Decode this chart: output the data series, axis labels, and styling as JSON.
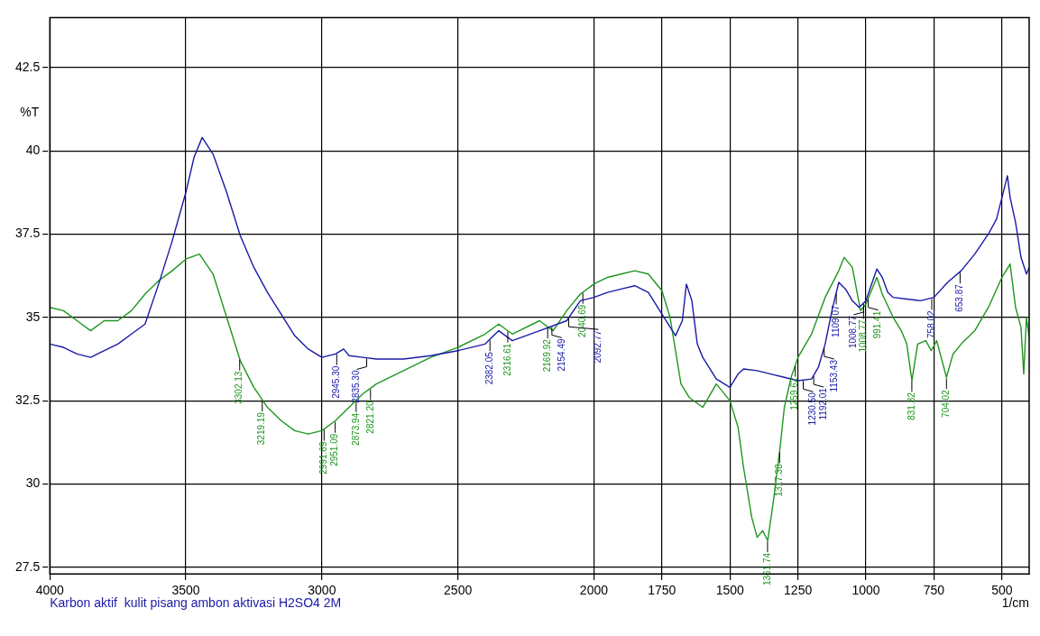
{
  "chart_data": {
    "type": "line",
    "xlabel": "1/cm",
    "ylabel": "%T",
    "xlim": [
      4000,
      400
    ],
    "xticks": [
      4000,
      3500,
      3000,
      2500,
      2000,
      1750,
      1500,
      1250,
      1000,
      750,
      500
    ],
    "ylim": [
      27.3,
      44
    ],
    "yticks": [
      27.5,
      30,
      32.5,
      35,
      37.5,
      40,
      42.5
    ],
    "grid": true,
    "legend": false,
    "marker": "none",
    "line_style": "solid",
    "series": [
      {
        "color": "#1a1aa8",
        "x": [
          4000,
          3950,
          3900,
          3850,
          3800,
          3750,
          3700,
          3650,
          3600,
          3550,
          3500,
          3470,
          3440,
          3400,
          3350,
          3300,
          3250,
          3200,
          3150,
          3100,
          3050,
          3000,
          2950,
          2920,
          2900,
          2850,
          2800,
          2700,
          2600,
          2500,
          2400,
          2350,
          2300,
          2200,
          2100,
          2050,
          2000,
          1950,
          1900,
          1850,
          1800,
          1750,
          1700,
          1675,
          1660,
          1640,
          1620,
          1600,
          1550,
          1500,
          1470,
          1450,
          1400,
          1350,
          1300,
          1250,
          1200,
          1175,
          1150,
          1125,
          1100,
          1075,
          1050,
          1025,
          1000,
          975,
          960,
          940,
          920,
          900,
          850,
          800,
          750,
          700,
          650,
          600,
          550,
          520,
          480,
          470,
          450,
          430,
          410,
          400
        ],
        "values": [
          34.2,
          34.1,
          33.9,
          33.8,
          34.0,
          34.2,
          34.5,
          34.8,
          36.0,
          37.3,
          38.75,
          39.8,
          40.4,
          39.9,
          38.75,
          37.45,
          36.5,
          35.75,
          35.1,
          34.45,
          34.05,
          33.8,
          33.9,
          34.05,
          33.85,
          33.8,
          33.75,
          33.75,
          33.85,
          34.0,
          34.2,
          34.6,
          34.3,
          34.6,
          34.9,
          35.5,
          35.6,
          35.75,
          35.85,
          35.95,
          35.75,
          35.1,
          34.45,
          34.9,
          36.0,
          35.5,
          34.2,
          33.8,
          33.15,
          32.9,
          33.3,
          33.45,
          33.4,
          33.3,
          33.2,
          33.1,
          33.15,
          33.5,
          34.2,
          35.2,
          36.05,
          35.85,
          35.5,
          35.3,
          35.5,
          36.1,
          36.45,
          36.2,
          35.75,
          35.6,
          35.55,
          35.5,
          35.6,
          36.05,
          36.4,
          36.9,
          37.5,
          37.95,
          39.25,
          38.6,
          37.85,
          36.8,
          36.3,
          36.5
        ]
      },
      {
        "color": "#1e961e",
        "x": [
          4000,
          3950,
          3900,
          3850,
          3800,
          3750,
          3700,
          3650,
          3600,
          3550,
          3500,
          3450,
          3400,
          3350,
          3300,
          3250,
          3200,
          3150,
          3100,
          3050,
          3000,
          2950,
          2900,
          2850,
          2800,
          2700,
          2600,
          2500,
          2400,
          2350,
          2300,
          2200,
          2150,
          2100,
          2050,
          2000,
          1950,
          1900,
          1850,
          1800,
          1750,
          1720,
          1700,
          1680,
          1650,
          1600,
          1550,
          1500,
          1470,
          1450,
          1420,
          1400,
          1380,
          1361,
          1340,
          1317,
          1300,
          1275,
          1250,
          1200,
          1150,
          1100,
          1080,
          1050,
          1020,
          1000,
          960,
          940,
          900,
          870,
          850,
          831,
          810,
          780,
          760,
          740,
          704,
          680,
          650,
          600,
          550,
          500,
          470,
          450,
          430,
          420,
          410,
          400
        ],
        "values": [
          35.3,
          35.2,
          34.9,
          34.6,
          34.9,
          34.9,
          35.2,
          35.7,
          36.1,
          36.4,
          36.75,
          36.9,
          36.3,
          35.0,
          33.7,
          32.9,
          32.3,
          31.9,
          31.6,
          31.5,
          31.6,
          31.9,
          32.3,
          32.7,
          33.0,
          33.4,
          33.8,
          34.1,
          34.5,
          34.8,
          34.5,
          34.9,
          34.6,
          35.2,
          35.7,
          36.0,
          36.2,
          36.3,
          36.4,
          36.3,
          35.8,
          35.0,
          34.0,
          33.0,
          32.6,
          32.3,
          33.0,
          32.5,
          31.7,
          30.5,
          29.0,
          28.4,
          28.6,
          28.3,
          29.5,
          31.0,
          32.3,
          33.2,
          33.8,
          34.5,
          35.6,
          36.4,
          36.8,
          36.5,
          35.2,
          35.4,
          36.2,
          35.7,
          35.0,
          34.6,
          34.2,
          33.1,
          34.2,
          34.3,
          34.0,
          34.3,
          33.2,
          33.9,
          34.2,
          34.6,
          35.3,
          36.2,
          36.6,
          35.3,
          34.7,
          33.3,
          35.0,
          34.4
        ]
      }
    ],
    "annotations": [
      "Karbon aktif  kulit pisang ambon aktivasi H2SO4 2M",
      {
        "text": "3302.13",
        "x": 3302.13,
        "y": 33.76
      },
      {
        "text": "3219.19",
        "x": 3219.19,
        "y": 32.53
      },
      {
        "text": "2991.69",
        "x": 2991.69,
        "y": 31.65
      },
      {
        "text": "2951.09",
        "x": 2951.09,
        "y": 31.89
      },
      {
        "text": "2873.94",
        "x": 2873.94,
        "y": 32.51
      },
      {
        "text": "2821.20",
        "x": 2821.2,
        "y": 32.87
      },
      {
        "text": "2316.61",
        "x": 2316.61,
        "y": 34.6
      },
      {
        "text": "2169.92",
        "x": 2169.92,
        "y": 34.72
      },
      {
        "text": "2040.69",
        "x": 2040.69,
        "y": 35.76
      },
      {
        "text": "1361.74",
        "x": 1361.74,
        "y": 28.31
      },
      {
        "text": "1317.38",
        "x": 1317.38,
        "y": 30.98
      },
      {
        "text": "1259.62",
        "x": 1259.62,
        "y": 33.57
      },
      {
        "text": "1008.77",
        "x": 1008.77,
        "y": 35.31
      },
      {
        "text": "991.41",
        "x": 991.41,
        "y": 35.57
      },
      {
        "text": "831.32",
        "x": 831.32,
        "y": 33.12
      },
      {
        "text": "704.02",
        "x": 704.02,
        "y": 33.2
      },
      {
        "text": "2945.30",
        "x": 2945.3,
        "y": 33.92
      },
      {
        "text": "2835.30",
        "x": 2835.3,
        "y": 33.79
      },
      {
        "text": "2382.05",
        "x": 2382.05,
        "y": 34.34
      },
      {
        "text": "2154.49",
        "x": 2154.49,
        "y": 34.74
      },
      {
        "text": "2092.77",
        "x": 2092.77,
        "y": 34.99
      },
      {
        "text": "1230.50",
        "x": 1230.5,
        "y": 33.12
      },
      {
        "text": "1192.01",
        "x": 1192.01,
        "y": 33.26
      },
      {
        "text": "1153.43",
        "x": 1153.43,
        "y": 34.1
      },
      {
        "text": "1109.07",
        "x": 1109.07,
        "y": 35.74
      },
      {
        "text": "1008.77",
        "x": 1008.77,
        "y": 35.43
      },
      {
        "text": "758.02",
        "x": 758.02,
        "y": 35.58
      },
      {
        "text": "653.87",
        "x": 653.87,
        "y": 36.37
      }
    ]
  }
}
